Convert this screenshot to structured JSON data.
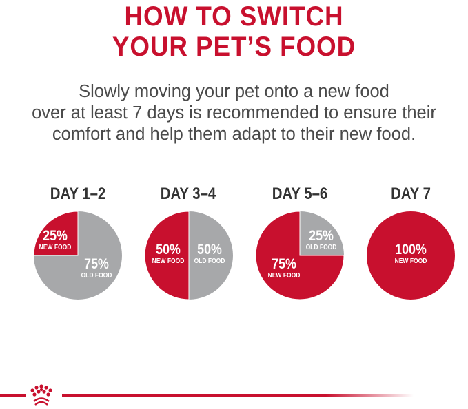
{
  "title": {
    "line1": "HOW TO SWITCH",
    "line2": "YOUR PET’S FOOD"
  },
  "intro": {
    "line1": "Slowly moving your pet onto a new food",
    "line2": "over at least 7 days is recommended to ensure their",
    "line3": "comfort and help them adapt to their new food."
  },
  "colors": {
    "new_food": "#c8102e",
    "old_food": "#a7a8aa",
    "title": "#c8102e"
  },
  "stages": [
    {
      "day": "DAY 1–2",
      "new_pct": 25,
      "new_label": "25%",
      "new_text": "NEW FOOD",
      "old_label": "75%",
      "old_text": "OLD FOOD"
    },
    {
      "day": "DAY 3–4",
      "new_pct": 50,
      "new_label": "50%",
      "new_text": "NEW FOOD",
      "old_label": "50%",
      "old_text": "OLD FOOD"
    },
    {
      "day": "DAY 5–6",
      "new_pct": 75,
      "new_label": "75%",
      "new_text": "NEW FOOD",
      "old_label": "25%",
      "old_text": "OLD FOOD"
    },
    {
      "day": "DAY 7",
      "new_pct": 100,
      "new_label": "100%",
      "new_text": "NEW FOOD"
    }
  ],
  "logo": {
    "icon": "royal-canin-crown-icon"
  }
}
